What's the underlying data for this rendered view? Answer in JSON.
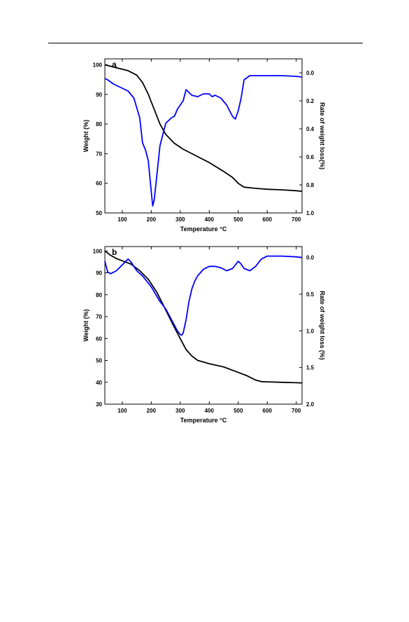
{
  "chart_data": [
    {
      "type": "line",
      "panel_label": "a",
      "xlabel": "Temperature °C",
      "ylabel": "Weight (%)",
      "y2label": "Rate of weight loss(%)",
      "xlim": [
        40,
        720
      ],
      "ylim": [
        50,
        102
      ],
      "y2lim": [
        -0.1,
        1.0
      ],
      "y2_inverted": true,
      "x_ticks": [
        100,
        200,
        300,
        400,
        500,
        600,
        700
      ],
      "y_ticks": [
        50,
        60,
        70,
        80,
        90,
        100
      ],
      "y2_ticks": [
        "0.0",
        "0.2",
        "0.4",
        "0.6",
        "0.8",
        "1.0"
      ],
      "series": [
        {
          "axis": "left",
          "color": "#000000",
          "x": [
            40,
            80,
            120,
            150,
            170,
            190,
            210,
            230,
            250,
            280,
            310,
            350,
            400,
            450,
            480,
            500,
            520,
            560,
            600,
            650,
            700,
            720
          ],
          "y": [
            100,
            99,
            98,
            96.5,
            94,
            90,
            85,
            80,
            76.5,
            73.5,
            71.5,
            69.5,
            67,
            64,
            62,
            60,
            58.7,
            58.3,
            58,
            57.8,
            57.5,
            57.3
          ]
        },
        {
          "axis": "right",
          "color": "#0000ff",
          "x": [
            40,
            50,
            70,
            100,
            120,
            140,
            160,
            170,
            180,
            190,
            200,
            205,
            210,
            220,
            230,
            250,
            270,
            280,
            290,
            300,
            310,
            320,
            340,
            360,
            380,
            400,
            410,
            420,
            440,
            460,
            480,
            490,
            500,
            510,
            520,
            540,
            560,
            600,
            650,
            700,
            720
          ],
          "y": [
            0.04,
            0.05,
            0.08,
            0.11,
            0.13,
            0.18,
            0.32,
            0.5,
            0.55,
            0.63,
            0.85,
            0.95,
            0.91,
            0.72,
            0.52,
            0.36,
            0.32,
            0.31,
            0.26,
            0.23,
            0.2,
            0.12,
            0.16,
            0.17,
            0.15,
            0.15,
            0.17,
            0.16,
            0.18,
            0.23,
            0.31,
            0.33,
            0.27,
            0.18,
            0.05,
            0.02,
            0.02,
            0.02,
            0.02,
            0.025,
            0.03
          ]
        }
      ]
    },
    {
      "type": "line",
      "panel_label": "b",
      "xlabel": "Temperature °C",
      "ylabel": "Weight (%)",
      "y2label": "Rate of weight loss (%)",
      "xlim": [
        40,
        720
      ],
      "ylim": [
        30,
        102
      ],
      "y2lim": [
        -0.15,
        2.0
      ],
      "y2_inverted": true,
      "x_ticks": [
        100,
        200,
        300,
        400,
        500,
        600,
        700
      ],
      "y_ticks": [
        30,
        40,
        50,
        60,
        70,
        80,
        90,
        100
      ],
      "y2_ticks": [
        "0.0",
        "0.5",
        "1.0",
        "1.5",
        "2.0"
      ],
      "series": [
        {
          "axis": "left",
          "color": "#000000",
          "x": [
            40,
            60,
            80,
            100,
            130,
            160,
            190,
            220,
            250,
            280,
            300,
            320,
            340,
            360,
            400,
            450,
            500,
            530,
            560,
            580,
            600,
            650,
            700,
            720
          ],
          "y": [
            100,
            98,
            96.5,
            95.5,
            94,
            91,
            87,
            81,
            73,
            65,
            60,
            55,
            52,
            50,
            48.5,
            47,
            44.5,
            43,
            41,
            40.3,
            40.2,
            40,
            39.8,
            39.7
          ]
        },
        {
          "axis": "right",
          "color": "#0000ff",
          "x": [
            40,
            50,
            60,
            80,
            100,
            120,
            130,
            150,
            170,
            200,
            230,
            250,
            270,
            290,
            300,
            305,
            310,
            320,
            330,
            340,
            350,
            360,
            380,
            400,
            420,
            440,
            460,
            480,
            500,
            510,
            520,
            540,
            560,
            580,
            600,
            650,
            700,
            720
          ],
          "y": [
            0.05,
            0.2,
            0.22,
            0.18,
            0.1,
            0.02,
            0.06,
            0.18,
            0.25,
            0.4,
            0.6,
            0.7,
            0.85,
            1.0,
            1.05,
            1.06,
            1.03,
            0.85,
            0.6,
            0.43,
            0.32,
            0.25,
            0.16,
            0.12,
            0.12,
            0.14,
            0.18,
            0.15,
            0.05,
            0.09,
            0.15,
            0.18,
            0.12,
            0.02,
            -0.02,
            -0.02,
            -0.01,
            0.0
          ]
        }
      ]
    }
  ]
}
